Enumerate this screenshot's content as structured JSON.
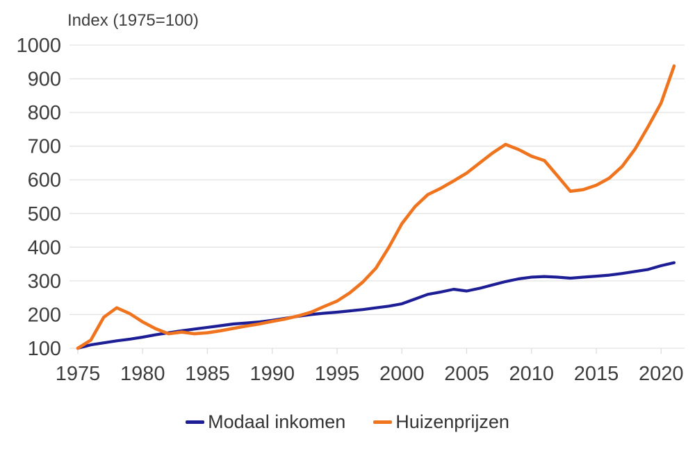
{
  "chart_data": {
    "type": "line",
    "title": "Index (1975=100)",
    "xlabel": "",
    "ylabel": "Index (1975=100)",
    "x": [
      1975,
      1976,
      1977,
      1978,
      1979,
      1980,
      1981,
      1982,
      1983,
      1984,
      1985,
      1986,
      1987,
      1988,
      1989,
      1990,
      1991,
      1992,
      1993,
      1994,
      1995,
      1996,
      1997,
      1998,
      1999,
      2000,
      2001,
      2002,
      2003,
      2004,
      2005,
      2006,
      2007,
      2008,
      2009,
      2010,
      2011,
      2012,
      2013,
      2014,
      2015,
      2016,
      2017,
      2018,
      2019,
      2020,
      2021
    ],
    "series": [
      {
        "name": "Modaal inkomen",
        "color": "#1d1d96",
        "values": [
          100,
          110,
          116,
          122,
          127,
          133,
          140,
          146,
          152,
          157,
          162,
          167,
          172,
          175,
          178,
          183,
          189,
          195,
          200,
          204,
          207,
          211,
          215,
          220,
          225,
          232,
          246,
          260,
          267,
          275,
          270,
          278,
          288,
          298,
          306,
          311,
          313,
          311,
          308,
          311,
          314,
          317,
          322,
          328,
          334,
          345,
          354
        ]
      },
      {
        "name": "Huizenprijzen",
        "color": "#f0731e",
        "values": [
          100,
          124,
          192,
          220,
          203,
          178,
          158,
          143,
          148,
          143,
          146,
          152,
          159,
          166,
          172,
          180,
          187,
          196,
          207,
          224,
          240,
          265,
          297,
          338,
          400,
          470,
          520,
          556,
          575,
          597,
          620,
          650,
          680,
          705,
          690,
          670,
          657,
          612,
          566,
          571,
          584,
          605,
          640,
          692,
          758,
          828,
          938
        ]
      }
    ],
    "xticks": [
      1975,
      1980,
      1985,
      1990,
      1995,
      2000,
      2005,
      2010,
      2015,
      2020
    ],
    "yticks": [
      100,
      200,
      300,
      400,
      500,
      600,
      700,
      800,
      900,
      1000
    ],
    "xlim": [
      1975,
      2021
    ],
    "ylim": [
      100,
      1000
    ],
    "grid": true,
    "legend_position": "bottom",
    "background_color": "#ffffff",
    "grid_color": "#e3e3e3",
    "text_color": "#3d3d3d"
  }
}
